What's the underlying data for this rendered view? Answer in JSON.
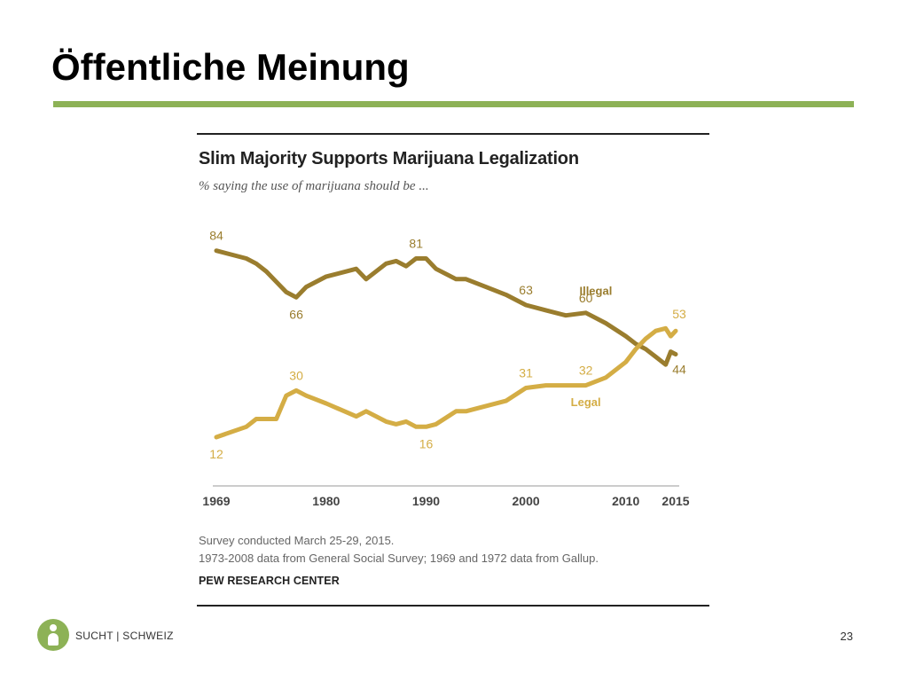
{
  "slide": {
    "title": "Öffentliche Meinung",
    "accent_color": "#8db256",
    "page_number": "23"
  },
  "footer": {
    "logo_text": "SUCHT | SCHWEIZ",
    "logo_color": "#8db256"
  },
  "notes": {
    "line1": "Survey conducted March 25-29, 2015.",
    "line2": "1973-2008 data from General Social Survey; 1969 and 1972 data from Gallup.",
    "source": "PEW RESEARCH CENTER"
  },
  "chart_data": {
    "type": "line",
    "title": "Slim Majority Supports Marijuana Legalization",
    "subtitle": "% saying the use of marijuana should be ...",
    "x_ticks": [
      1969,
      1980,
      1990,
      2000,
      2010,
      2015
    ],
    "xlim": [
      1969,
      2015
    ],
    "ylim": [
      0,
      100
    ],
    "grid": false,
    "series": [
      {
        "name": "Illegal",
        "color": "#9a7d2e",
        "x": [
          1969,
          1972,
          1973,
          1974,
          1975,
          1976,
          1977,
          1978,
          1980,
          1983,
          1984,
          1986,
          1987,
          1988,
          1989,
          1990,
          1991,
          1993,
          1994,
          1996,
          1998,
          2000,
          2002,
          2004,
          2006,
          2008,
          2010,
          2011,
          2012,
          2013,
          2014,
          2014.5,
          2015
        ],
        "values": [
          84,
          81,
          79,
          76,
          72,
          68,
          66,
          70,
          74,
          77,
          73,
          79,
          80,
          78,
          81,
          81,
          77,
          73,
          73,
          70,
          67,
          63,
          61,
          59,
          60,
          56,
          51,
          48,
          46,
          43,
          40,
          45,
          44
        ],
        "labels": [
          {
            "x": 1969,
            "value": 84,
            "text": "84"
          },
          {
            "x": 1977,
            "value": 66,
            "text": "66"
          },
          {
            "x": 1989,
            "value": 81,
            "text": "81"
          },
          {
            "x": 2000,
            "value": 63,
            "text": "63"
          },
          {
            "x": 2006,
            "value": 60,
            "text": "60"
          },
          {
            "x": 2015,
            "value": 44,
            "text": "44"
          }
        ],
        "series_label": "Illegal"
      },
      {
        "name": "Legal",
        "color": "#d4ad45",
        "x": [
          1969,
          1972,
          1973,
          1975,
          1976,
          1977,
          1978,
          1980,
          1983,
          1984,
          1986,
          1987,
          1988,
          1989,
          1990,
          1991,
          1993,
          1994,
          1996,
          1998,
          2000,
          2002,
          2004,
          2006,
          2008,
          2010,
          2011,
          2012,
          2013,
          2014,
          2014.5,
          2015
        ],
        "values": [
          12,
          16,
          19,
          19,
          28,
          30,
          28,
          25,
          20,
          22,
          18,
          17,
          18,
          16,
          16,
          17,
          22,
          22,
          24,
          26,
          31,
          32,
          32,
          32,
          35,
          41,
          46,
          50,
          53,
          54,
          51,
          53
        ],
        "labels": [
          {
            "x": 1969,
            "value": 12,
            "text": "12"
          },
          {
            "x": 1977,
            "value": 30,
            "text": "30"
          },
          {
            "x": 1990,
            "value": 16,
            "text": "16"
          },
          {
            "x": 2000,
            "value": 31,
            "text": "31"
          },
          {
            "x": 2006,
            "value": 32,
            "text": "32"
          },
          {
            "x": 2015,
            "value": 53,
            "text": "53"
          }
        ],
        "series_label": "Legal"
      }
    ]
  }
}
